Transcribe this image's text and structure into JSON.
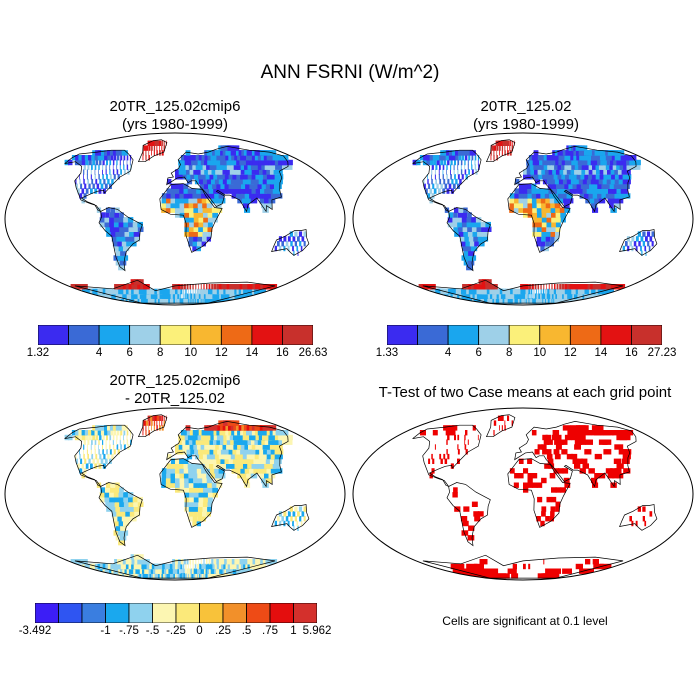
{
  "figure": {
    "title": "ANN FSRNI (W/m^2)"
  },
  "panels": {
    "top_left": {
      "title_line1": "20TR_125.02cmip6",
      "title_line2": "(yrs 1980-1999)"
    },
    "top_right": {
      "title_line1": "20TR_125.02",
      "title_line2": "(yrs 1980-1999)"
    },
    "bottom_left": {
      "title_line1": "20TR_125.02cmip6",
      "title_line2": "- 20TR_125.02"
    },
    "bottom_right": {
      "title": "T-Test of two Case means at each grid point",
      "note": "Cells are significant at 0.1 level"
    }
  },
  "colorbars": {
    "case1": {
      "labels": [
        "1.32",
        "4",
        "6",
        "8",
        "10",
        "12",
        "14",
        "16",
        "26.63"
      ],
      "colors": [
        "#3b2bf0",
        "#3a6ad6",
        "#1aa6ee",
        "#9ed0e8",
        "#fbf07a",
        "#f8b730",
        "#ee6a16",
        "#e31212",
        "#c8302c"
      ]
    },
    "case2": {
      "labels": [
        "1.33",
        "4",
        "6",
        "8",
        "10",
        "12",
        "14",
        "16",
        "27.23"
      ],
      "colors": [
        "#3b2bf0",
        "#3a6ad6",
        "#1aa6ee",
        "#9ed0e8",
        "#fbf07a",
        "#f8b730",
        "#ee6a16",
        "#e31212",
        "#c8302c"
      ]
    },
    "diff": {
      "labels": [
        "-3.492",
        "-1",
        "-.75",
        "-.5",
        "-.25",
        "0",
        ".25",
        ".5",
        ".75",
        "1",
        "5.962"
      ],
      "colors": [
        "#3c1ef6",
        "#2f55f2",
        "#3a7ee0",
        "#1aa8ee",
        "#8fd2ee",
        "#fcf6b2",
        "#fbe97a",
        "#f8c23a",
        "#f2902a",
        "#ee4b16",
        "#e40e0e",
        "#d4302c"
      ]
    },
    "significance": {
      "color": "#ee0000"
    }
  },
  "map_colors": {
    "land_outline": "#000000",
    "ocean": "#ffffff"
  }
}
